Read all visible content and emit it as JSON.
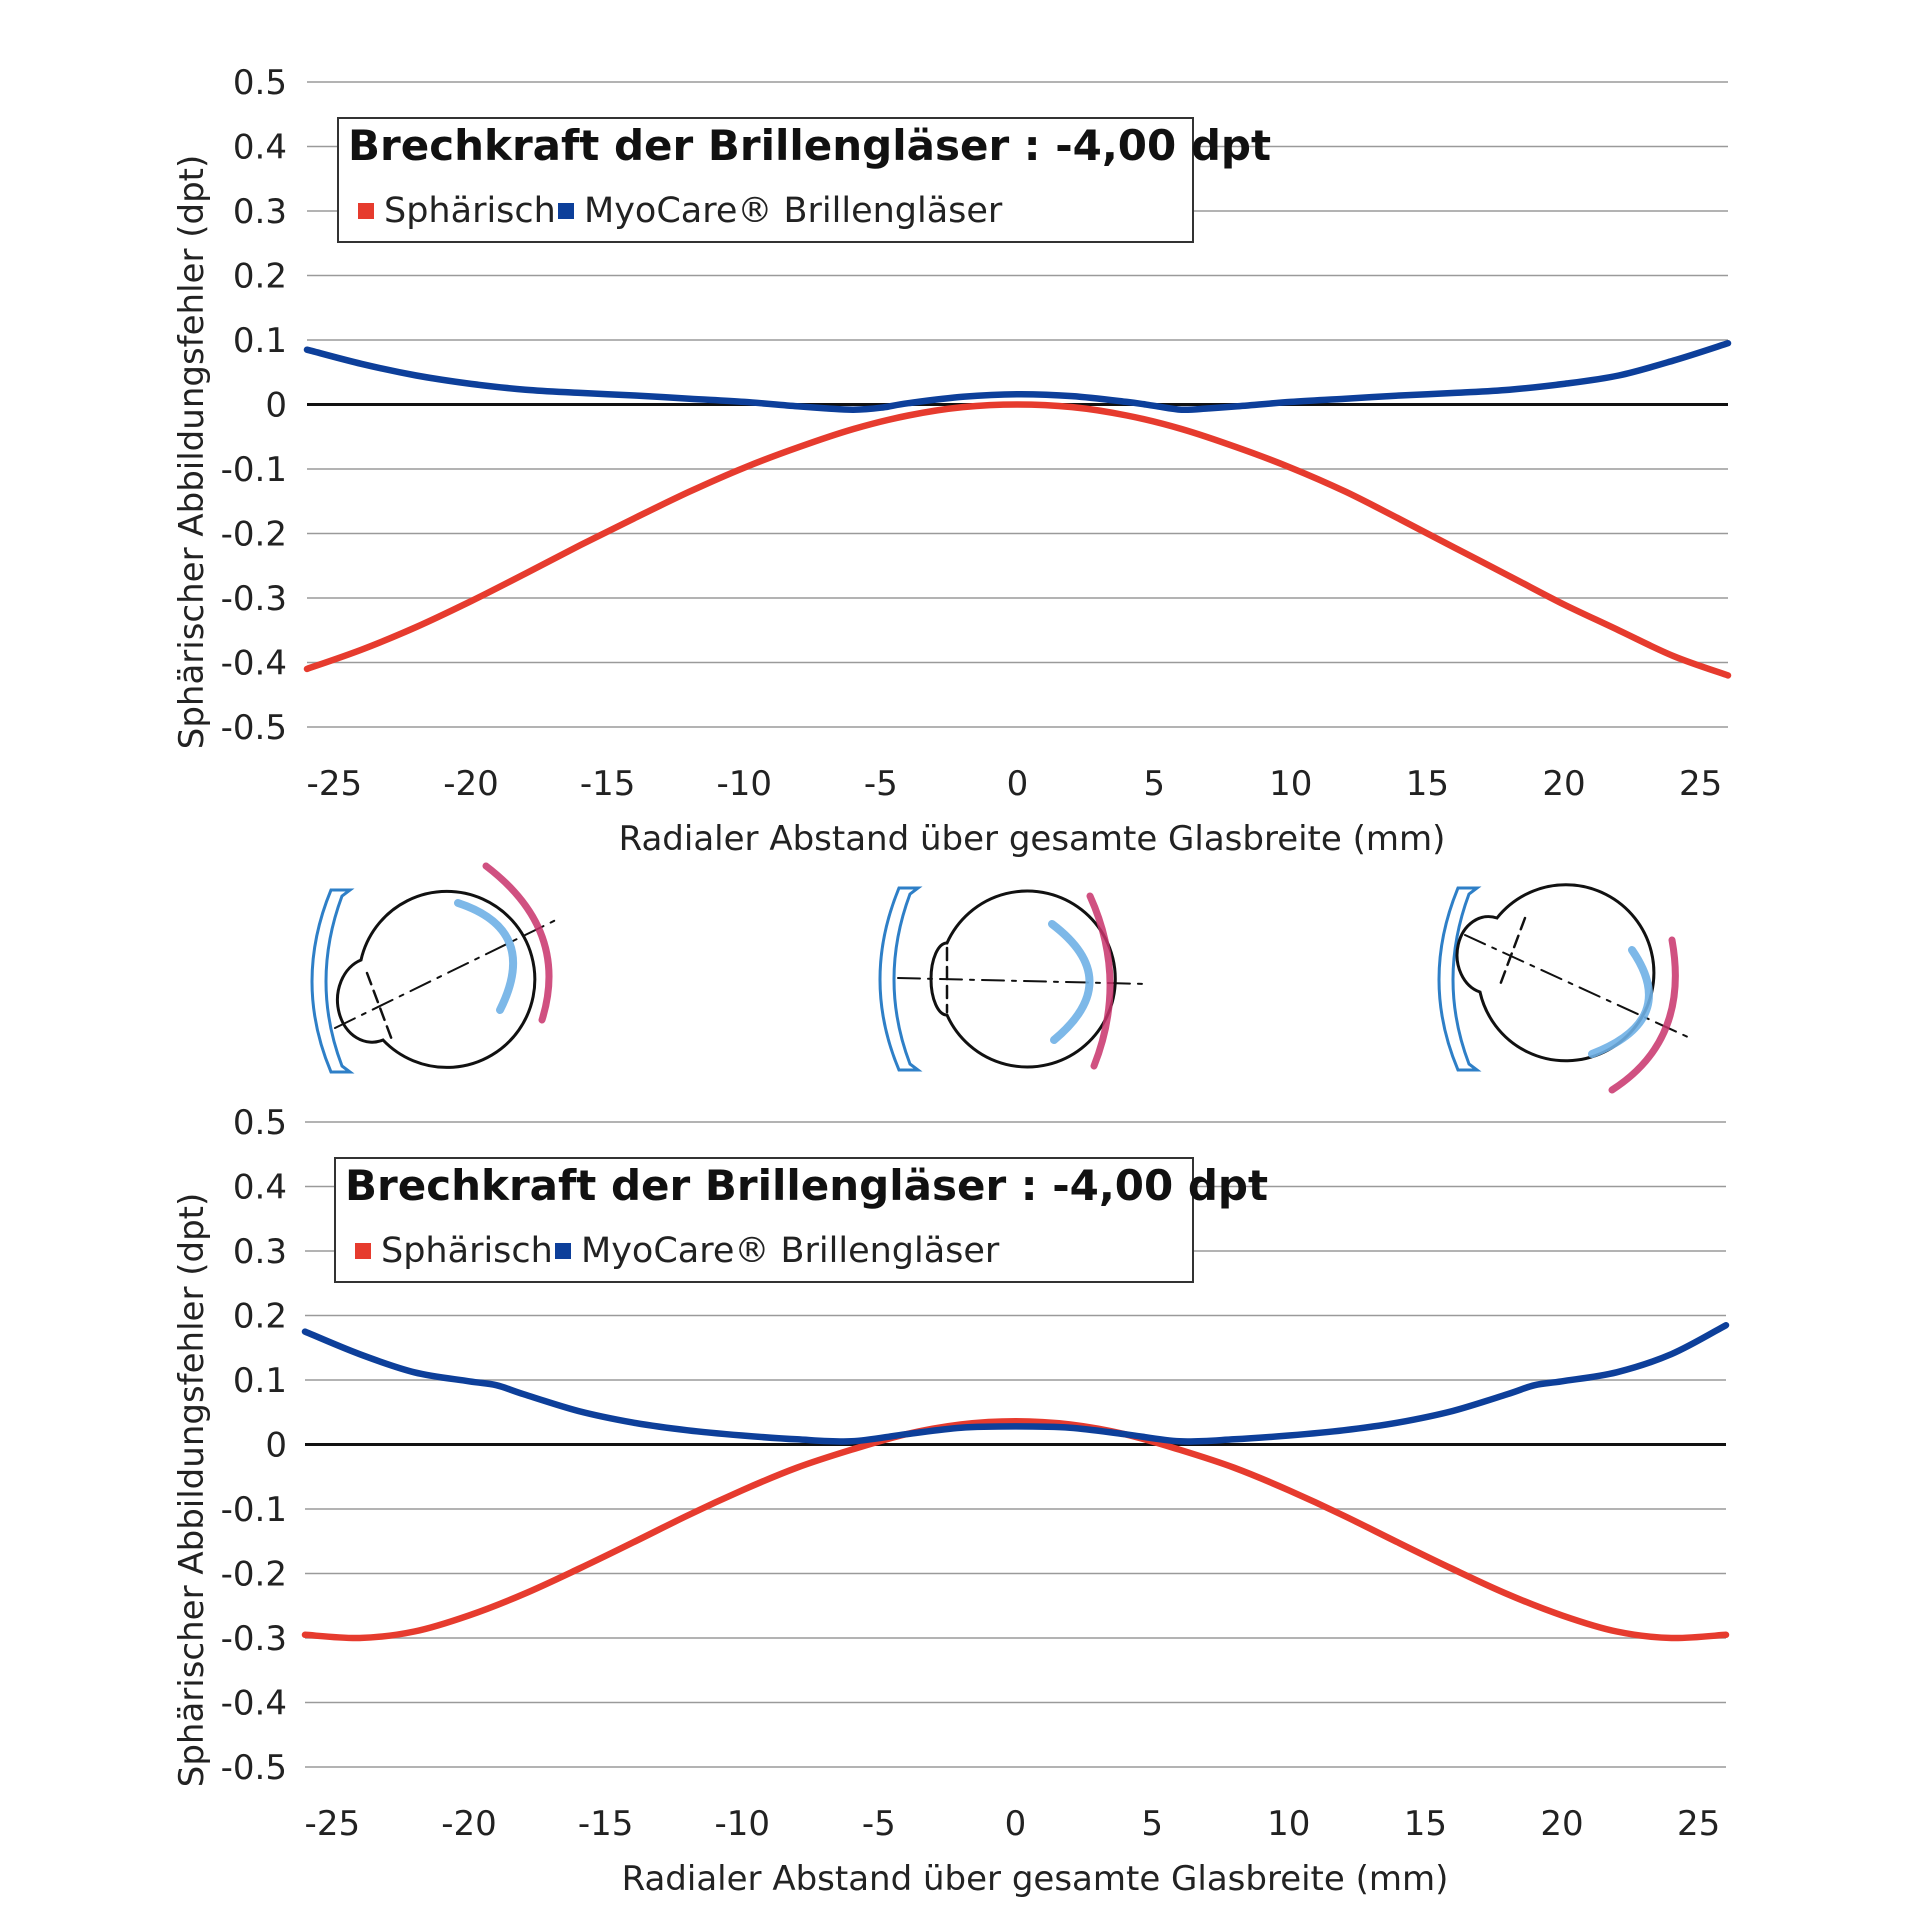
{
  "colors": {
    "spherical": "#e63b2e",
    "myocare": "#0d3f9a",
    "grid": "#9a9a9a",
    "zero_line": "#111111",
    "lens_blue": "#2e7fc7",
    "retina_pink": "#c8326b",
    "retina_blue": "#6fb0e6"
  },
  "chart_data": [
    {
      "type": "line",
      "title": "Brechkraft der Brillengläser : -4,00 dpt",
      "xlabel": "Radialer Abstand über gesamte Glasbreite (mm)",
      "ylabel": "Sphärischer Abbildungsfehler (dpt)",
      "xlim": [
        -26,
        26
      ],
      "ylim": [
        -0.5,
        0.5
      ],
      "x_ticks": [
        -25,
        -20,
        -15,
        -10,
        -5,
        0,
        5,
        10,
        15,
        20,
        25
      ],
      "y_ticks": [
        0.5,
        0.4,
        0.3,
        0.2,
        0.1,
        0,
        -0.1,
        -0.2,
        -0.3,
        -0.4,
        -0.5
      ],
      "y_tick_labels": [
        "0.5",
        "0.4",
        "0.3",
        "0.2",
        "0.1",
        "0",
        "-0.1",
        "-0.2",
        "-0.3",
        "-0.4",
        "-0.5"
      ],
      "legend_placement": "top-left",
      "grid": true,
      "series": [
        {
          "name": "Sphärisch",
          "color": "#e63b2e",
          "x": [
            -26,
            -24,
            -22,
            -20,
            -18,
            -16,
            -14,
            -12,
            -10,
            -8,
            -6,
            -4,
            -2,
            0,
            2,
            4,
            6,
            8,
            10,
            12,
            14,
            16,
            18,
            20,
            22,
            24,
            26
          ],
          "y": [
            -0.41,
            -0.38,
            -0.345,
            -0.305,
            -0.262,
            -0.218,
            -0.176,
            -0.135,
            -0.098,
            -0.066,
            -0.038,
            -0.017,
            -0.004,
            0.0,
            -0.004,
            -0.017,
            -0.038,
            -0.066,
            -0.098,
            -0.135,
            -0.178,
            -0.222,
            -0.266,
            -0.31,
            -0.35,
            -0.39,
            -0.42
          ]
        },
        {
          "name": "MyoCare® Brillengläser",
          "color": "#0d3f9a",
          "x": [
            -26,
            -24,
            -22,
            -20,
            -18,
            -16,
            -14,
            -12,
            -10,
            -8,
            -7,
            -6,
            -5,
            -4,
            -2,
            0,
            2,
            4,
            5,
            6,
            7,
            8,
            10,
            12,
            14,
            16,
            18,
            20,
            22,
            24,
            26
          ],
          "y": [
            0.085,
            0.063,
            0.045,
            0.032,
            0.023,
            0.018,
            0.014,
            0.009,
            0.004,
            -0.003,
            -0.006,
            -0.008,
            -0.005,
            0.002,
            0.012,
            0.016,
            0.013,
            0.004,
            -0.002,
            -0.008,
            -0.006,
            -0.003,
            0.004,
            0.009,
            0.014,
            0.018,
            0.023,
            0.032,
            0.045,
            0.068,
            0.095
          ]
        }
      ]
    },
    {
      "type": "line",
      "title": "Brechkraft der Brillengläser : -4,00 dpt",
      "xlabel": "Radialer Abstand über gesamte Glasbreite (mm)",
      "ylabel": "Sphärischer Abbildungsfehler (dpt)",
      "xlim": [
        -26,
        26
      ],
      "ylim": [
        -0.5,
        0.5
      ],
      "x_ticks": [
        -25,
        -20,
        -15,
        -10,
        -5,
        0,
        5,
        10,
        15,
        20,
        25
      ],
      "y_ticks": [
        0.5,
        0.4,
        0.3,
        0.2,
        0.1,
        0,
        -0.1,
        -0.2,
        -0.3,
        -0.4,
        -0.5
      ],
      "y_tick_labels": [
        "0.5",
        "0.4",
        "0.3",
        "0.2",
        "0.1",
        "0",
        "-0.1",
        "-0.2",
        "-0.3",
        "-0.4",
        "-0.5"
      ],
      "legend_placement": "top-left",
      "grid": true,
      "series": [
        {
          "name": "Sphärisch",
          "color": "#e63b2e",
          "x": [
            -26,
            -24,
            -22,
            -20,
            -18,
            -16,
            -14,
            -12,
            -10,
            -8,
            -6,
            -4,
            -2,
            0,
            2,
            4,
            6,
            8,
            10,
            12,
            14,
            16,
            18,
            20,
            22,
            24,
            26
          ],
          "y": [
            -0.295,
            -0.3,
            -0.29,
            -0.265,
            -0.232,
            -0.193,
            -0.152,
            -0.11,
            -0.071,
            -0.036,
            -0.008,
            0.016,
            0.031,
            0.036,
            0.031,
            0.016,
            -0.008,
            -0.036,
            -0.071,
            -0.11,
            -0.152,
            -0.193,
            -0.232,
            -0.265,
            -0.29,
            -0.3,
            -0.295
          ]
        },
        {
          "name": "MyoCare® Brillengläser",
          "color": "#0d3f9a",
          "x": [
            -26,
            -24,
            -22,
            -20,
            -19,
            -18,
            -16,
            -14,
            -12,
            -10,
            -8,
            -6,
            -4,
            -2,
            0,
            2,
            4,
            6,
            8,
            10,
            12,
            14,
            16,
            18,
            19,
            20,
            22,
            24,
            26
          ],
          "y": [
            0.175,
            0.14,
            0.112,
            0.098,
            0.092,
            0.078,
            0.052,
            0.034,
            0.022,
            0.014,
            0.008,
            0.005,
            0.016,
            0.026,
            0.028,
            0.026,
            0.016,
            0.005,
            0.008,
            0.014,
            0.022,
            0.034,
            0.052,
            0.078,
            0.092,
            0.098,
            0.112,
            0.14,
            0.185
          ]
        }
      ]
    }
  ]
}
